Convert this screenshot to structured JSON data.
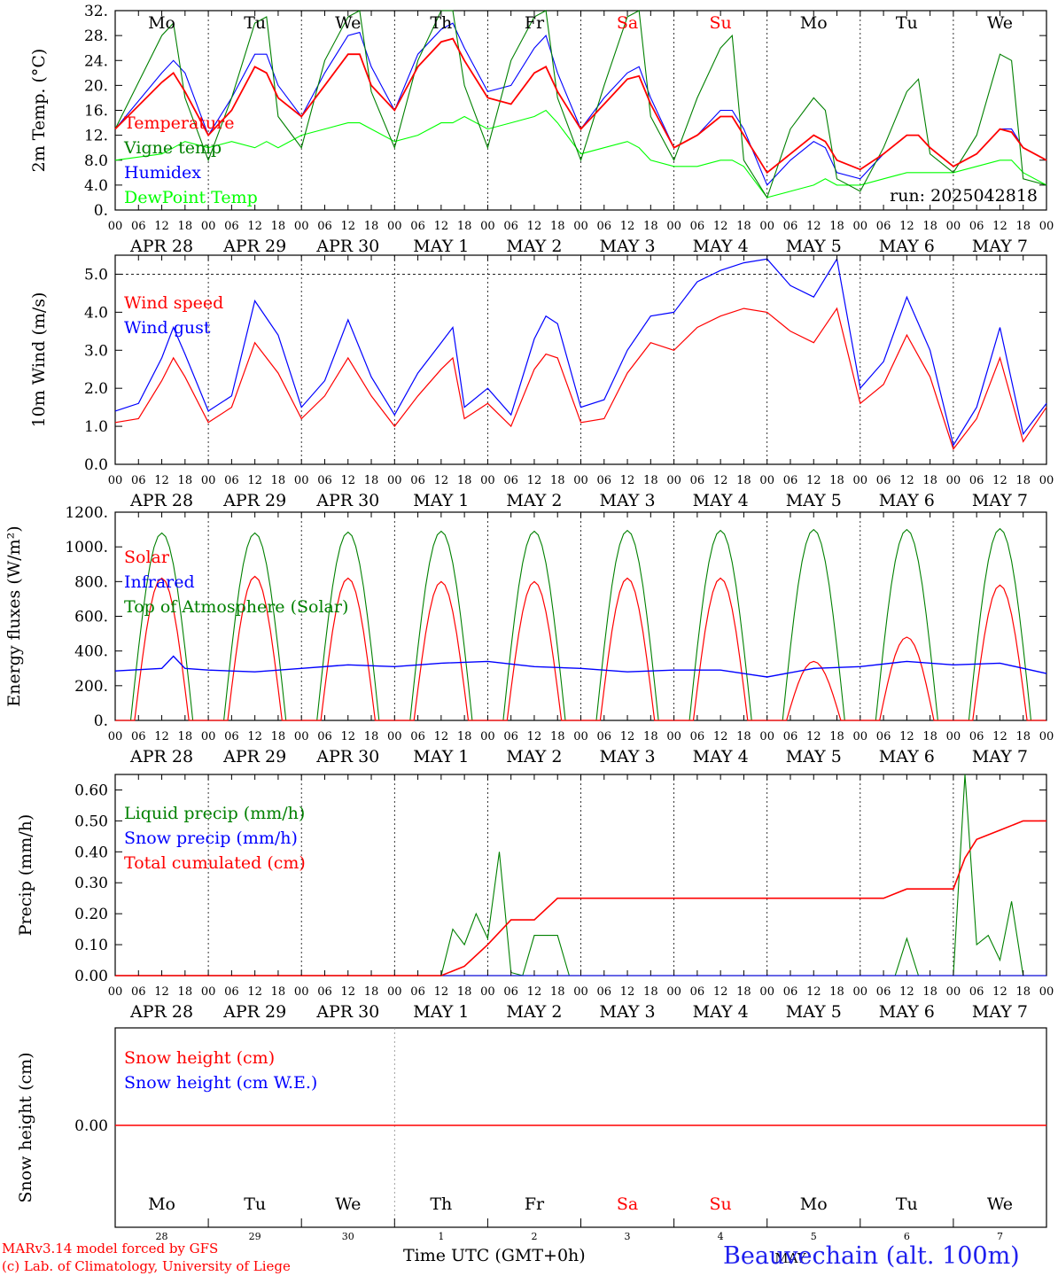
{
  "chart_data": [
    {
      "type": "line",
      "ylabel": "2m Temp. (°C)",
      "ylim": [
        0,
        32
      ],
      "yticks": [
        "0.",
        "4.0",
        "8.0",
        "12.",
        "16.",
        "20.",
        "24.",
        "28.",
        "32."
      ],
      "ytick_values": [
        0,
        4,
        8,
        12,
        16,
        20,
        24,
        28,
        32
      ],
      "day_names": [
        "Mo",
        "Tu",
        "We",
        "Th",
        "Fr",
        "Sa",
        "Su",
        "Mo",
        "Tu",
        "We"
      ],
      "run_label": "run: 2025042818",
      "x_hours": [
        0,
        12,
        15,
        18,
        24,
        30,
        36,
        39,
        42,
        48,
        54,
        60,
        63,
        66,
        72,
        78,
        84,
        87,
        90,
        96,
        102,
        108,
        111,
        114,
        120,
        126,
        132,
        135,
        138,
        144,
        150,
        156,
        159,
        162,
        168,
        174,
        180,
        183,
        186,
        192,
        198,
        204,
        207,
        210,
        216,
        222,
        228,
        231,
        234,
        240
      ],
      "series": [
        {
          "name": "Temperature",
          "color": "#ff0000",
          "values": [
            13,
            20.5,
            22,
            19,
            12,
            16,
            23,
            22,
            18,
            15,
            20,
            25,
            25,
            20,
            16,
            23,
            27,
            27.5,
            24,
            18,
            17,
            22,
            23,
            19,
            13,
            17,
            21,
            21.5,
            17,
            10,
            12,
            15,
            15,
            12,
            6,
            9,
            12,
            11,
            8,
            6.5,
            9,
            12,
            12,
            10,
            7,
            9,
            13,
            12.5,
            10,
            8
          ]
        },
        {
          "name": "Vigne temp",
          "color": "#008000",
          "values": [
            13,
            28,
            30,
            18,
            8,
            18,
            30,
            31,
            15,
            10,
            24,
            31,
            32,
            19,
            10,
            24,
            32,
            32,
            20,
            10,
            24,
            31,
            32,
            18,
            8,
            20,
            31,
            32,
            15,
            8,
            18,
            26,
            28,
            8,
            2,
            13,
            18,
            16,
            5,
            3,
            10,
            19,
            21,
            9,
            6,
            12,
            25,
            24,
            5,
            4
          ]
        },
        {
          "name": "Humidex",
          "color": "#0000ff",
          "values": [
            13,
            22,
            24,
            22,
            12,
            18,
            25,
            25,
            20,
            15,
            22,
            28,
            28.5,
            23,
            16,
            25,
            29,
            30,
            26,
            19,
            20,
            26,
            28,
            22,
            13,
            18,
            22,
            23,
            18,
            10,
            12,
            16,
            16,
            13,
            4,
            8,
            11,
            10,
            6,
            5,
            9,
            12,
            12,
            10,
            7,
            9,
            13,
            13,
            10,
            8
          ]
        },
        {
          "name": "DewPoint Temp",
          "color": "#00ff00",
          "values": [
            8,
            9,
            10,
            11,
            10,
            11,
            10,
            11,
            10,
            12,
            13,
            14,
            14,
            13,
            11,
            12,
            14,
            14,
            15,
            13,
            14,
            15,
            16,
            14,
            9,
            10,
            11,
            10,
            8,
            7,
            7,
            8,
            8,
            7,
            2,
            3,
            4,
            5,
            4,
            4,
            5,
            6,
            6,
            6,
            6,
            7,
            8,
            8,
            6,
            4
          ]
        }
      ]
    },
    {
      "type": "line",
      "ylabel": "10m Wind (m/s)",
      "ylim": [
        0,
        5.5
      ],
      "yticks": [
        "0.0",
        "1.0",
        "2.0",
        "3.0",
        "4.0",
        "5.0"
      ],
      "ytick_values": [
        0,
        1,
        2,
        3,
        4,
        5
      ],
      "x_hours": [
        0,
        6,
        12,
        15,
        18,
        24,
        30,
        36,
        42,
        48,
        54,
        60,
        66,
        72,
        78,
        84,
        87,
        90,
        96,
        102,
        108,
        111,
        114,
        120,
        126,
        132,
        138,
        144,
        150,
        156,
        162,
        168,
        174,
        180,
        186,
        192,
        198,
        204,
        210,
        216,
        222,
        228,
        234,
        240
      ],
      "series": [
        {
          "name": "Wind speed",
          "color": "#ff0000",
          "values": [
            1.1,
            1.2,
            2.2,
            2.8,
            2.3,
            1.1,
            1.5,
            3.2,
            2.4,
            1.2,
            1.8,
            2.8,
            1.8,
            1,
            1.8,
            2.5,
            2.8,
            1.2,
            1.6,
            1.0,
            2.5,
            2.9,
            2.8,
            1.1,
            1.2,
            2.4,
            3.2,
            3,
            3.6,
            3.9,
            4.1,
            4,
            3.5,
            3.2,
            4.1,
            1.6,
            2.1,
            3.4,
            2.3,
            0.4,
            1.2,
            2.8,
            0.6,
            1.5
          ]
        },
        {
          "name": "Wind gust",
          "color": "#0000ff",
          "values": [
            1.4,
            1.6,
            2.8,
            3.6,
            2.9,
            1.4,
            1.8,
            4.3,
            3.4,
            1.5,
            2.2,
            3.8,
            2.3,
            1.3,
            2.4,
            3.2,
            3.6,
            1.5,
            2,
            1.3,
            3.3,
            3.9,
            3.7,
            1.5,
            1.7,
            3.0,
            3.9,
            4.0,
            4.8,
            5.1,
            5.3,
            5.4,
            4.7,
            4.4,
            5.4,
            2.0,
            2.7,
            4.4,
            3.0,
            0.5,
            1.5,
            3.6,
            0.8,
            1.6
          ]
        }
      ],
      "reference_line": 5.0
    },
    {
      "type": "line",
      "ylabel": "Energy fluxes (W/m²)",
      "ylim": [
        0,
        1200
      ],
      "yticks": [
        "0.",
        "200.",
        "400.",
        "600.",
        "800.",
        "1000.",
        "1200."
      ],
      "ytick_values": [
        0,
        200,
        400,
        600,
        800,
        1000,
        1200
      ],
      "series": [
        {
          "name": "Solar",
          "color": "#ff0000",
          "daily_peak": [
            820,
            830,
            820,
            800,
            800,
            820,
            820,
            340,
            480,
            780
          ]
        },
        {
          "name": "Infrared",
          "color": "#0000ff",
          "x_hours": [
            0,
            12,
            15,
            18,
            24,
            36,
            48,
            60,
            72,
            84,
            96,
            108,
            120,
            132,
            144,
            156,
            168,
            180,
            192,
            204,
            216,
            228,
            240
          ],
          "values": [
            285,
            300,
            370,
            300,
            290,
            280,
            300,
            320,
            310,
            330,
            340,
            310,
            300,
            280,
            290,
            290,
            250,
            300,
            310,
            340,
            320,
            330,
            270
          ]
        },
        {
          "name": "Top of Atmosphere (Solar)",
          "color": "#008000",
          "daily_peak": [
            1080,
            1080,
            1085,
            1090,
            1090,
            1095,
            1095,
            1100,
            1100,
            1105
          ]
        }
      ]
    },
    {
      "type": "line",
      "ylabel": "Precip (mm/h)",
      "ylim": [
        0,
        0.65
      ],
      "yticks": [
        "0.00",
        "0.10",
        "0.20",
        "0.30",
        "0.40",
        "0.50",
        "0.60"
      ],
      "ytick_values": [
        0,
        0.1,
        0.2,
        0.3,
        0.4,
        0.5,
        0.6
      ],
      "series": [
        {
          "name": "Liquid precip (mm/h)",
          "color": "#008000",
          "x_hours": [
            0,
            84,
            87,
            90,
            93,
            96,
            99,
            102,
            105,
            108,
            114,
            117,
            120,
            126,
            132,
            186,
            201,
            204,
            207,
            216,
            219,
            222,
            225,
            228,
            231,
            234,
            240
          ],
          "values": [
            0,
            0,
            0.15,
            0.1,
            0.2,
            0.12,
            0.4,
            0.01,
            0,
            0.13,
            0.13,
            0,
            0,
            0,
            0,
            0,
            0,
            0.12,
            0,
            0,
            0.65,
            0.1,
            0.13,
            0.05,
            0.24,
            0,
            0
          ]
        },
        {
          "name": "Snow precip (mm/h)",
          "color": "#0000ff",
          "x_hours": [
            0,
            240
          ],
          "values": [
            0,
            0
          ]
        },
        {
          "name": "Total cumulated (cm)",
          "color": "#ff0000",
          "x_hours": [
            0,
            84,
            90,
            96,
            102,
            108,
            114,
            120,
            126,
            132,
            186,
            198,
            204,
            210,
            216,
            219,
            222,
            228,
            234,
            240
          ],
          "values": [
            0,
            0,
            0.03,
            0.1,
            0.18,
            0.18,
            0.25,
            0.25,
            0.25,
            0.25,
            0.25,
            0.25,
            0.28,
            0.28,
            0.28,
            0.38,
            0.44,
            0.47,
            0.5,
            0.5
          ]
        }
      ]
    },
    {
      "type": "line",
      "ylabel": "Snow height (cm)",
      "ytick_label": "0.00",
      "series": [
        {
          "name": "Snow height (cm)",
          "color": "#ff0000",
          "x_hours": [
            0,
            240
          ],
          "values": [
            0,
            0
          ]
        },
        {
          "name": "Snow height (cm W.E.)",
          "color": "#0000ff",
          "x_hours": [],
          "values": []
        }
      ],
      "day_names": [
        "Mo",
        "Tu",
        "We",
        "Th",
        "Fr",
        "Sa",
        "Su",
        "Mo",
        "Tu",
        "We"
      ],
      "day_numbers": [
        "28",
        "29",
        "30",
        "1",
        "2",
        "3",
        "4",
        "5",
        "6",
        "7"
      ],
      "month_label": "MAY",
      "xlabel": "Time UTC (GMT+0h)"
    }
  ],
  "axis": {
    "hour_ticks": [
      "00",
      "06",
      "12",
      "18"
    ],
    "date_labels": [
      "APR 28",
      "APR 29",
      "APR 30",
      "MAY  1",
      "MAY  2",
      "MAY  3",
      "MAY  4",
      "MAY  5",
      "MAY  6",
      "MAY  7"
    ],
    "weekend_color": "#ff0000",
    "weekend_indices": [
      5,
      6
    ]
  },
  "footer": {
    "model_line": "MARv3.14 model forced by GFS",
    "lab_line": "(c) Lab. of Climatology, University of Liege",
    "station": "Beauvechain (alt. 100m)"
  }
}
